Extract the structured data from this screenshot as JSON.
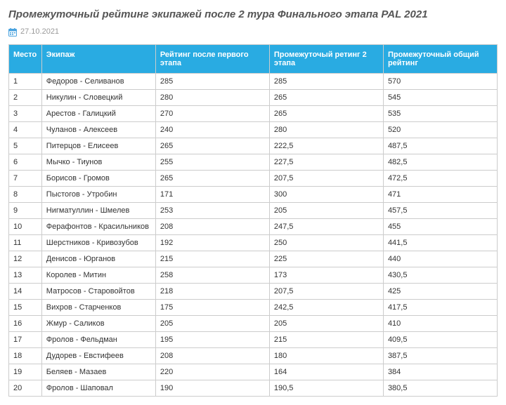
{
  "title": "Промежуточный рейтинг экипажей после 2 тура Финального этапа PAL 2021",
  "date": "27.10.2021",
  "table": {
    "columns": [
      "Место",
      "Экипаж",
      "Рейтинг после первого этапа",
      "Промежуточый ретинг 2 этапа",
      "Промежуточный общий рейтинг"
    ],
    "header_bg": "#29abe2",
    "header_color": "#ffffff",
    "border_color": "#cccccc",
    "rows": [
      [
        "1",
        "Федоров - Селиванов",
        "285",
        "285",
        "570"
      ],
      [
        "2",
        "Никулин - Словецкий",
        "280",
        "265",
        "545"
      ],
      [
        "3",
        "Арестов - Галицкий",
        "270",
        "265",
        "535"
      ],
      [
        "4",
        "Чуланов - Алексеев",
        "240",
        "280",
        "520"
      ],
      [
        "5",
        "Питерцов - Елисеев",
        "265",
        "222,5",
        "487,5"
      ],
      [
        "6",
        "Мычко - Тиунов",
        "255",
        "227,5",
        "482,5"
      ],
      [
        "7",
        "Борисов - Громов",
        "265",
        "207,5",
        "472,5"
      ],
      [
        "8",
        "Пыстогов - Утробин",
        "171",
        "300",
        "471"
      ],
      [
        "9",
        "Нигматуллин - Шмелев",
        "253",
        "205",
        "457,5"
      ],
      [
        "10",
        "Ферафонтов - Красильников",
        "208",
        "247,5",
        "455"
      ],
      [
        "11",
        "Шерстников - Кривозубов",
        "192",
        "250",
        "441,5"
      ],
      [
        "12",
        "Денисов - Юрганов",
        "215",
        "225",
        "440"
      ],
      [
        "13",
        "Королев - Митин",
        "258",
        "173",
        "430,5"
      ],
      [
        "14",
        "Матросов - Старовойтов",
        "218",
        "207,5",
        "425"
      ],
      [
        "15",
        "Вихров - Старченков",
        "175",
        "242,5",
        "417,5"
      ],
      [
        "16",
        "Жмур - Саликов",
        "205",
        "205",
        "410"
      ],
      [
        "17",
        "Фролов - Фельдман",
        "195",
        "215",
        "409,5"
      ],
      [
        "18",
        "Дудорев - Евстифеев",
        "208",
        "180",
        "387,5"
      ],
      [
        "19",
        "Беляев - Мазаев",
        "220",
        "164",
        "384"
      ],
      [
        "20",
        "Фролов - Шаповал",
        "190",
        "190,5",
        "380,5"
      ]
    ]
  }
}
